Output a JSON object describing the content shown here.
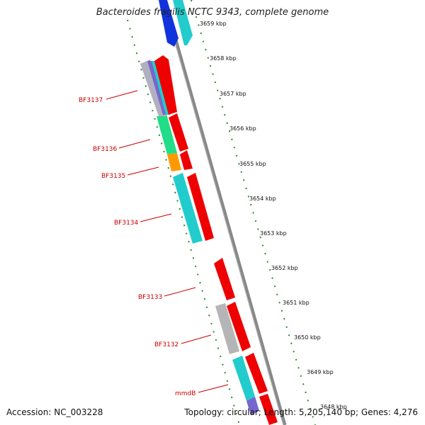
{
  "header": {
    "title": "Bacteroides fragilis NCTC 9343, complete genome"
  },
  "footer": {
    "accession": "Accession: NC_003228",
    "topology": "Topology: circular; Length: 5,205,140 bp; Genes: 4,276"
  },
  "scale": {
    "unit": "kbp",
    "ticks": [
      "3659 kbp",
      "3658 kbp",
      "3657 kbp",
      "3656 kbp",
      "3655 kbp",
      "3654 kbp",
      "3653 kbp",
      "3652 kbp",
      "3651 kbp",
      "3650 kbp",
      "3649 kbp",
      "3648 kbp"
    ]
  },
  "gene_labels": [
    "BF3137",
    "BF3136",
    "BF3135",
    "BF3134",
    "BF3133",
    "BF3132",
    "mmdB"
  ],
  "colors": {
    "forward_strand": "#ee0000",
    "backbone": "#888888",
    "scale_ticks": "#2a8a2a",
    "label_text": "#cc0000",
    "blue": "#1133dd",
    "cyan": "#22cccc",
    "green": "#22dd88",
    "orange": "#ff9900",
    "gray": "#b5b5b5",
    "purple": "#7766cc"
  }
}
